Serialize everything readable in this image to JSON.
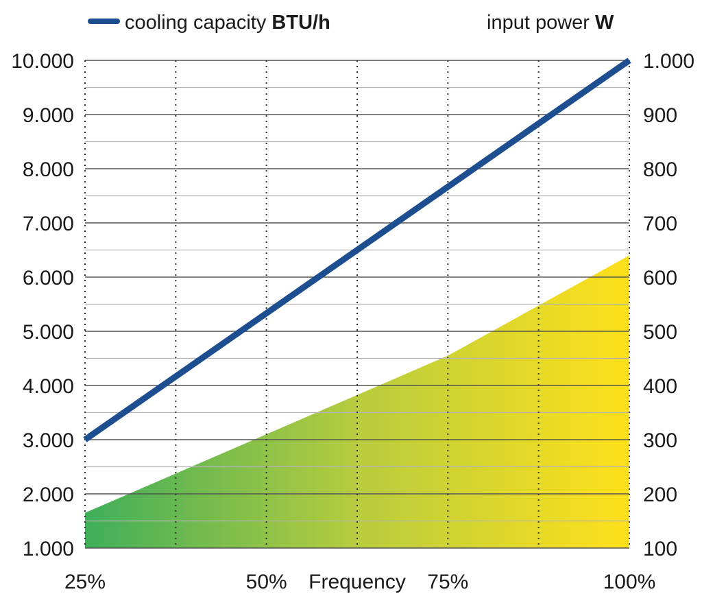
{
  "chart_data": {
    "type": "line",
    "title": "",
    "xlabel": "Frequency",
    "x_ticks": [
      "25%",
      "50%",
      "75%",
      "100%"
    ],
    "x_domain": [
      25,
      100
    ],
    "y_left": {
      "label": "cooling capacity BTU/h",
      "ticks": [
        "10.000",
        "9.000",
        "8.000",
        "7.000",
        "6.000",
        "5.000",
        "4.000",
        "3.000",
        "2.000",
        "1.000"
      ],
      "ylim": [
        1000,
        10000
      ]
    },
    "y_right": {
      "label": "input power W",
      "ticks": [
        "1.000",
        "900",
        "800",
        "700",
        "600",
        "500",
        "400",
        "300",
        "200",
        "100"
      ],
      "ylim": [
        100,
        1000
      ]
    },
    "series": [
      {
        "name": "cooling capacity",
        "unit": "BTU/h",
        "axis": "left",
        "kind": "line",
        "color": "#1d4e8f",
        "x": [
          25,
          100
        ],
        "y": [
          3000,
          10000
        ]
      },
      {
        "name": "input power",
        "unit": "W",
        "axis": "right",
        "kind": "area",
        "gradient": [
          "#3fae5a",
          "#b7cc3e",
          "#ffe01a"
        ],
        "x": [
          25,
          50,
          75,
          100
        ],
        "y": [
          165,
          310,
          455,
          640
        ]
      }
    ],
    "grid": {
      "horizontal": true,
      "vertical_dotted_x": [
        25,
        37.5,
        50,
        62.5,
        75,
        87.5,
        100
      ]
    },
    "legend": {
      "position": "top",
      "items": [
        {
          "prefix": "cooling capacity ",
          "unit": "BTU/h"
        },
        {
          "prefix": "input power ",
          "unit": "W"
        }
      ]
    }
  }
}
